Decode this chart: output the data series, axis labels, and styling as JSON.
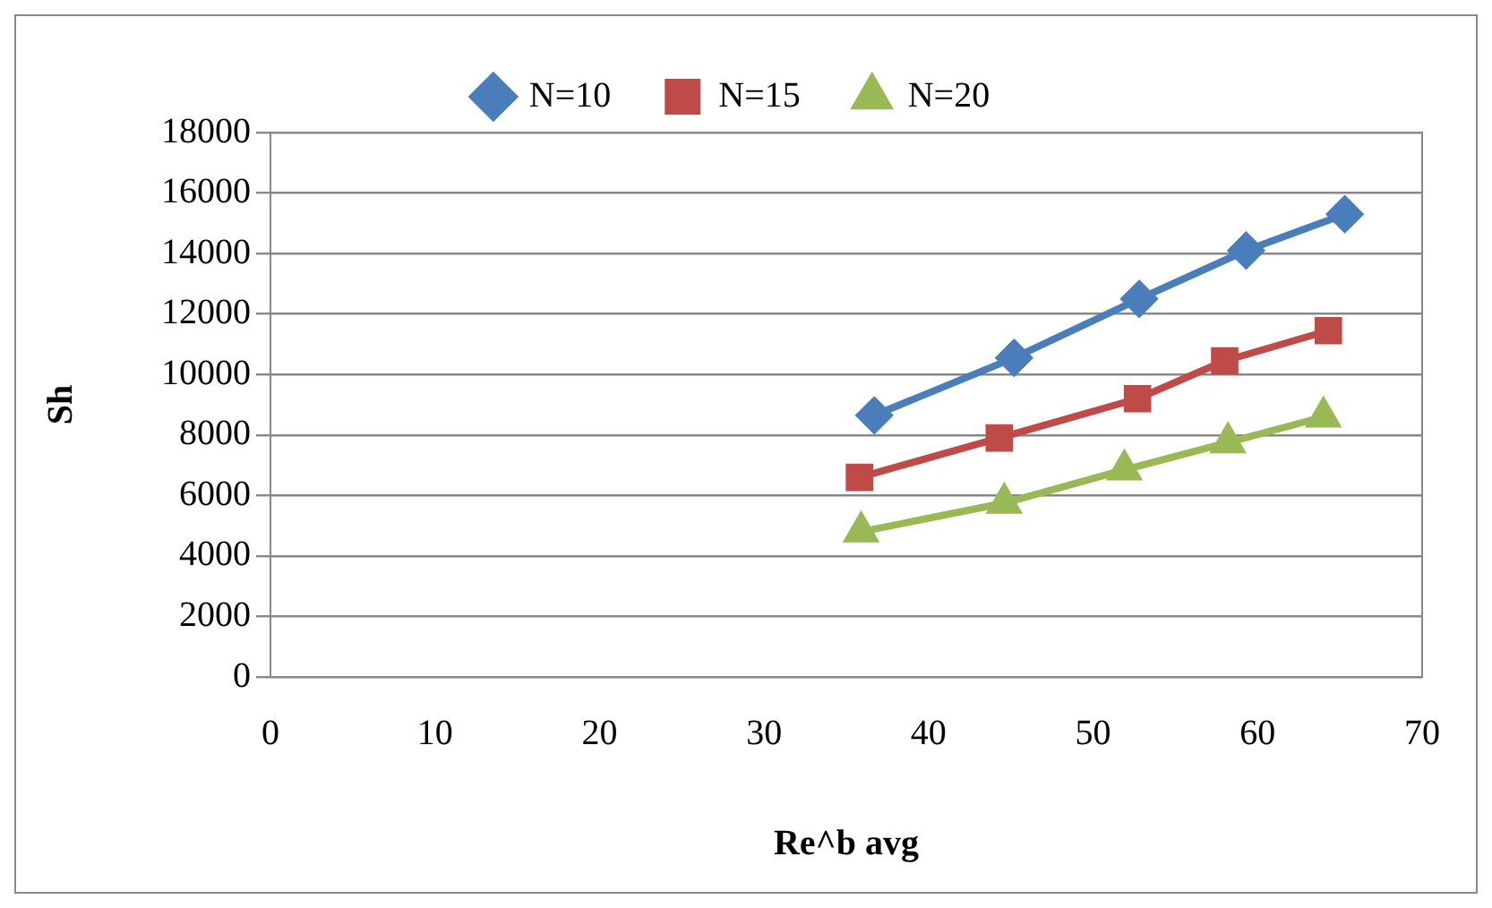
{
  "chart_data": {
    "type": "line",
    "xlabel": "Re^b avg",
    "ylabel": "Sh",
    "xlim": [
      0,
      70
    ],
    "xticks": [
      0,
      10,
      20,
      30,
      40,
      50,
      60,
      70
    ],
    "ylim": [
      0,
      18000
    ],
    "yticks": [
      0,
      2000,
      4000,
      6000,
      8000,
      10000,
      12000,
      14000,
      16000,
      18000
    ],
    "grid": "y",
    "legend": "top",
    "line_style": "solid",
    "series": [
      {
        "name": "N=10",
        "color": "#4a7ebb",
        "marker": "diamond",
        "x": [
          36.7,
          45.2,
          52.8,
          59.3,
          65.3
        ],
        "values": [
          8650,
          10550,
          12500,
          14100,
          15300
        ]
      },
      {
        "name": "N=15",
        "color": "#be4b48",
        "marker": "square",
        "x": [
          35.8,
          44.3,
          52.7,
          58.0,
          64.3
        ],
        "values": [
          6600,
          7900,
          9200,
          10450,
          11450
        ]
      },
      {
        "name": "N=20",
        "color": "#98b954",
        "marker": "triangle",
        "x": [
          35.9,
          44.6,
          51.9,
          58.2,
          64.0
        ],
        "values": [
          4800,
          5750,
          6850,
          7750,
          8600
        ]
      }
    ]
  }
}
